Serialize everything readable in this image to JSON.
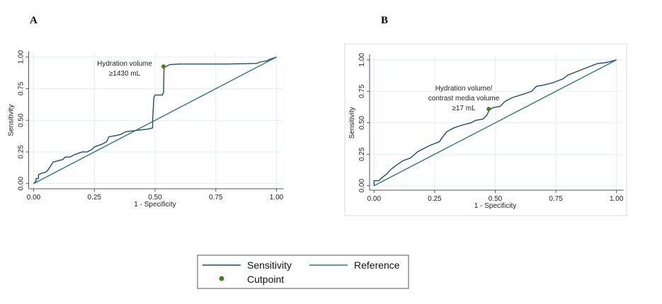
{
  "colors": {
    "sensitivity": "#1f4a73",
    "reference": "#2e7d6b",
    "cutpoint": "#4f7a2a",
    "grid": "#e6eef0"
  },
  "legend": {
    "placement": "bottom",
    "items": [
      {
        "label": "Sensitivity",
        "marker": "line",
        "color": "#1f4a73"
      },
      {
        "label": "Reference",
        "marker": "line",
        "color": "#2e7d6b"
      },
      {
        "label": "Cutpoint",
        "marker": "dot",
        "color": "#4f7a2a"
      }
    ]
  },
  "chart_data": [
    {
      "panel_label": "A",
      "type": "line",
      "xlabel": "1 - Specificity",
      "ylabel": "Sensitivity",
      "xlim": [
        0,
        1
      ],
      "ylim": [
        0,
        1
      ],
      "xticks": [
        "0.00",
        "0.25",
        "0.50",
        "0.75",
        "1.00"
      ],
      "yticks": [
        "0.00",
        "0.25",
        "0.50",
        "0.75",
        "1.00"
      ],
      "grid": true,
      "series": [
        {
          "name": "Sensitivity",
          "points": [
            [
              0,
              0
            ],
            [
              0.01,
              0.02
            ],
            [
              0.01,
              0.04
            ],
            [
              0.02,
              0.04
            ],
            [
              0.02,
              0.07
            ],
            [
              0.03,
              0.08
            ],
            [
              0.05,
              0.09
            ],
            [
              0.06,
              0.11
            ],
            [
              0.07,
              0.14
            ],
            [
              0.08,
              0.17
            ],
            [
              0.1,
              0.18
            ],
            [
              0.12,
              0.19
            ],
            [
              0.13,
              0.21
            ],
            [
              0.15,
              0.21
            ],
            [
              0.17,
              0.23
            ],
            [
              0.2,
              0.25
            ],
            [
              0.22,
              0.25
            ],
            [
              0.24,
              0.27
            ],
            [
              0.25,
              0.29
            ],
            [
              0.28,
              0.31
            ],
            [
              0.3,
              0.33
            ],
            [
              0.31,
              0.37
            ],
            [
              0.34,
              0.38
            ],
            [
              0.36,
              0.39
            ],
            [
              0.38,
              0.41
            ],
            [
              0.42,
              0.42
            ],
            [
              0.47,
              0.43
            ],
            [
              0.49,
              0.44
            ],
            [
              0.49,
              0.5
            ],
            [
              0.495,
              0.68
            ],
            [
              0.5,
              0.7
            ],
            [
              0.53,
              0.7
            ],
            [
              0.535,
              0.72
            ],
            [
              0.537,
              0.92
            ],
            [
              0.55,
              0.93
            ],
            [
              0.56,
              0.94
            ],
            [
              0.6,
              0.945
            ],
            [
              0.8,
              0.945
            ],
            [
              0.92,
              0.95
            ],
            [
              0.93,
              0.96
            ],
            [
              0.96,
              0.97
            ],
            [
              0.97,
              0.98
            ],
            [
              1,
              1
            ]
          ]
        },
        {
          "name": "Reference",
          "points": [
            [
              0,
              0
            ],
            [
              1,
              1
            ]
          ]
        }
      ],
      "cutpoint": {
        "x": 0.535,
        "y": 0.925,
        "annotation": [
          "Hydration volume",
          "≥1430 mL"
        ]
      }
    },
    {
      "panel_label": "B",
      "type": "line",
      "xlabel": "1 - Specificity",
      "ylabel": "Sensitivity",
      "xlim": [
        0,
        1
      ],
      "ylim": [
        0,
        1
      ],
      "xticks": [
        "0.00",
        "0.25",
        "0.50",
        "0.75",
        "1.00"
      ],
      "yticks": [
        "0.00",
        "0.25",
        "0.50",
        "0.75",
        "1.00"
      ],
      "grid": true,
      "series": [
        {
          "name": "Sensitivity",
          "points": [
            [
              0,
              0
            ],
            [
              0,
              0.04
            ],
            [
              0.02,
              0.04
            ],
            [
              0.03,
              0.06
            ],
            [
              0.05,
              0.09
            ],
            [
              0.07,
              0.13
            ],
            [
              0.09,
              0.16
            ],
            [
              0.12,
              0.2
            ],
            [
              0.15,
              0.22
            ],
            [
              0.18,
              0.27
            ],
            [
              0.21,
              0.3
            ],
            [
              0.23,
              0.32
            ],
            [
              0.27,
              0.35
            ],
            [
              0.28,
              0.38
            ],
            [
              0.3,
              0.43
            ],
            [
              0.33,
              0.46
            ],
            [
              0.36,
              0.48
            ],
            [
              0.4,
              0.5
            ],
            [
              0.42,
              0.52
            ],
            [
              0.45,
              0.53
            ],
            [
              0.465,
              0.56
            ],
            [
              0.475,
              0.6
            ],
            [
              0.49,
              0.62
            ],
            [
              0.52,
              0.63
            ],
            [
              0.54,
              0.67
            ],
            [
              0.57,
              0.7
            ],
            [
              0.62,
              0.73
            ],
            [
              0.65,
              0.75
            ],
            [
              0.67,
              0.79
            ],
            [
              0.7,
              0.8
            ],
            [
              0.74,
              0.82
            ],
            [
              0.78,
              0.85
            ],
            [
              0.8,
              0.88
            ],
            [
              0.84,
              0.91
            ],
            [
              0.88,
              0.94
            ],
            [
              0.92,
              0.97
            ],
            [
              0.96,
              0.98
            ],
            [
              1,
              1
            ]
          ]
        },
        {
          "name": "Reference",
          "points": [
            [
              0,
              0
            ],
            [
              1,
              1
            ]
          ]
        }
      ],
      "cutpoint": {
        "x": 0.473,
        "y": 0.61,
        "annotation": [
          "Hydration volume/",
          "contrast media volume",
          "≥17 mL"
        ]
      }
    }
  ]
}
